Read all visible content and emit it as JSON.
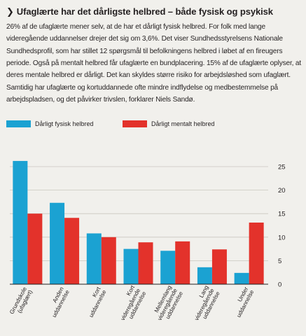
{
  "article": {
    "headline": "Ufaglærte har det dårligste helbred – både fysisk og psykisk",
    "chevron": "❯",
    "body": "26% af de ufaglærte mener selv, at de har et dårligt fysisk helbred. For folk med lange videregående uddannelser drejer det sig om 3,6%. Det viser Sundhedsstyrelsens Nationale Sundhedsprofil, som har stillet 12 spørgsmål til befolkningens helbred i løbet af en fireugers periode. Også på mentalt helbred får ufaglærte en bundplacering. 15% af de ufaglærte oplyser, at deres mentale helbred er dårligt. Det kan skyldes større risiko for arbejdsløshed som ufaglært. Samtidig har ufaglærte og kortuddannede ofte mindre indflydelse og medbestemmelse på arbejdspladsen, og det påvirker trivslen, forklarer Niels Sandø."
  },
  "colors": {
    "background": "#f1f0ec",
    "fysisk": "#1ba2d2",
    "mentalt": "#e3322b",
    "axis": "#231f20",
    "grid": "#c9c7c0"
  },
  "chart_data": {
    "type": "bar",
    "categories": [
      [
        "Grundskole",
        "(ufaglært)"
      ],
      [
        "Anden",
        "uddannelse"
      ],
      [
        "Kort",
        "uddannelse"
      ],
      [
        "Kort",
        "videregående",
        "uddannelse"
      ],
      [
        "Mellemlang",
        "videregående",
        "uddannelse"
      ],
      [
        "Lang",
        "videregående",
        "uddannelse"
      ],
      [
        "Under",
        "uddannelse"
      ]
    ],
    "series": [
      {
        "name": "Dårligt fysisk helbred",
        "values": [
          26.2,
          17.3,
          10.8,
          7.5,
          7.1,
          3.6,
          2.4
        ]
      },
      {
        "name": "Dårligt mentalt helbred",
        "values": [
          15.0,
          14.1,
          10.0,
          8.9,
          9.1,
          7.4,
          13.1
        ]
      }
    ],
    "ylim": [
      0,
      28
    ],
    "yticks": [
      0,
      5,
      10,
      15,
      20,
      25
    ],
    "grid": true,
    "legend": "top-left",
    "title": "",
    "xlabel": "",
    "ylabel": ""
  }
}
